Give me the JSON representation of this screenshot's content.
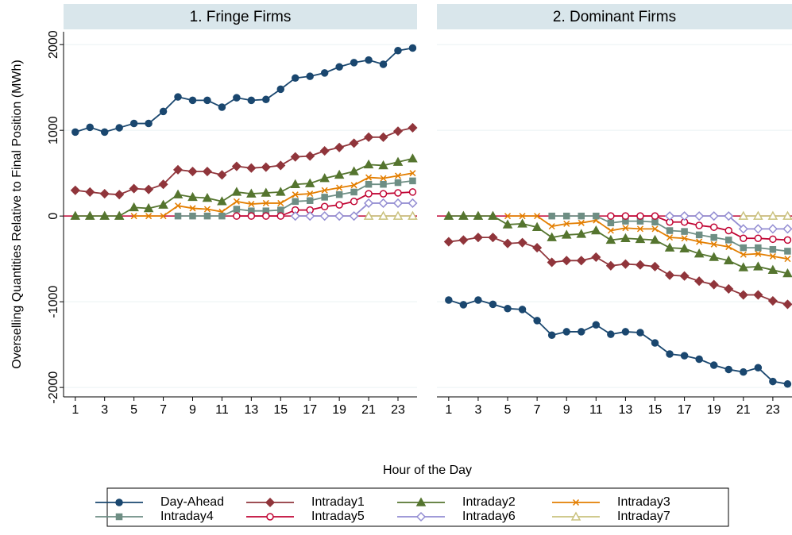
{
  "chart_data": [
    {
      "type": "line",
      "title": "1. Fringe Firms",
      "ylabel": "Overselling Quantities Relative to Final Position (MWh)",
      "xlabel": "Hour of the Day",
      "x": [
        1,
        2,
        3,
        4,
        5,
        6,
        7,
        8,
        9,
        10,
        11,
        12,
        13,
        14,
        15,
        16,
        17,
        18,
        19,
        20,
        21,
        22,
        23,
        24
      ],
      "xlim": [
        0.2,
        24.3
      ],
      "xticks": [
        1,
        3,
        5,
        7,
        9,
        11,
        13,
        15,
        17,
        19,
        21,
        23
      ],
      "ylim": [
        -2110,
        2150
      ],
      "yticks": [
        -2000,
        -1000,
        0,
        1000,
        2000
      ],
      "grid": true,
      "hline": 0,
      "hline_color": "#c10534",
      "series": [
        {
          "name": "Day-Ahead",
          "color": "#1a476f",
          "marker": "circle",
          "values": [
            980,
            1035,
            980,
            1030,
            1080,
            1080,
            1220,
            1390,
            1350,
            1350,
            1270,
            1380,
            1350,
            1360,
            1480,
            1610,
            1630,
            1670,
            1740,
            1790,
            1820,
            1770,
            1930,
            1960
          ]
        },
        {
          "name": "Intraday1",
          "color": "#90353b",
          "marker": "diamond",
          "values": [
            300,
            280,
            260,
            250,
            320,
            310,
            370,
            540,
            520,
            520,
            480,
            580,
            560,
            570,
            590,
            690,
            700,
            760,
            800,
            850,
            920,
            920,
            990,
            1030
          ]
        },
        {
          "name": "Intraday2",
          "color": "#55752f",
          "marker": "triangle",
          "values": [
            0,
            0,
            0,
            0,
            100,
            90,
            130,
            250,
            220,
            210,
            170,
            280,
            260,
            270,
            280,
            370,
            380,
            440,
            480,
            520,
            600,
            590,
            630,
            670
          ]
        },
        {
          "name": "Intraday3",
          "color": "#e37e00",
          "marker": "x",
          "values": [
            null,
            null,
            null,
            null,
            0,
            0,
            0,
            120,
            90,
            80,
            50,
            170,
            140,
            150,
            150,
            250,
            260,
            300,
            330,
            360,
            450,
            440,
            470,
            500
          ]
        },
        {
          "name": "Intraday4",
          "color": "#6e8e84",
          "marker": "square",
          "values": [
            null,
            null,
            null,
            null,
            null,
            null,
            null,
            0,
            0,
            0,
            0,
            80,
            60,
            60,
            70,
            170,
            180,
            220,
            250,
            280,
            370,
            370,
            390,
            410
          ]
        },
        {
          "name": "Intraday5",
          "color": "#c10534",
          "marker": "hollow-circle",
          "values": [
            null,
            null,
            null,
            null,
            null,
            null,
            null,
            null,
            null,
            null,
            null,
            0,
            0,
            0,
            0,
            70,
            70,
            110,
            130,
            170,
            260,
            260,
            270,
            280
          ]
        },
        {
          "name": "Intraday6",
          "color": "#938dd2",
          "marker": "hollow-diamond",
          "values": [
            null,
            null,
            null,
            null,
            null,
            null,
            null,
            null,
            null,
            null,
            null,
            null,
            null,
            null,
            null,
            0,
            0,
            0,
            0,
            0,
            150,
            150,
            150,
            150
          ]
        },
        {
          "name": "Intraday7",
          "color": "#cac27e",
          "marker": "hollow-triangle",
          "values": [
            null,
            null,
            null,
            null,
            null,
            null,
            null,
            null,
            null,
            null,
            null,
            null,
            null,
            null,
            null,
            null,
            null,
            null,
            null,
            null,
            0,
            0,
            0,
            0
          ]
        }
      ]
    },
    {
      "type": "line",
      "title": "2. Dominant Firms",
      "x": [
        1,
        2,
        3,
        4,
        5,
        6,
        7,
        8,
        9,
        10,
        11,
        12,
        13,
        14,
        15,
        16,
        17,
        18,
        19,
        20,
        21,
        22,
        23,
        24
      ],
      "xlim": [
        0.2,
        24.3
      ],
      "xticks": [
        1,
        3,
        5,
        7,
        9,
        11,
        13,
        15,
        17,
        19,
        21,
        23
      ],
      "ylim": [
        -2110,
        2150
      ],
      "grid": true,
      "hline": 0,
      "hline_color": "#c10534",
      "series": [
        {
          "color": "#1a476f",
          "marker": "circle",
          "values": [
            -980,
            -1035,
            -980,
            -1030,
            -1080,
            -1090,
            -1220,
            -1390,
            -1350,
            -1350,
            -1270,
            -1380,
            -1350,
            -1360,
            -1480,
            -1610,
            -1630,
            -1670,
            -1740,
            -1790,
            -1820,
            -1770,
            -1930,
            -1960
          ]
        },
        {
          "color": "#90353b",
          "marker": "diamond",
          "values": [
            -300,
            -280,
            -250,
            -250,
            -320,
            -310,
            -370,
            -540,
            -520,
            -520,
            -480,
            -580,
            -560,
            -570,
            -590,
            -690,
            -700,
            -760,
            -800,
            -850,
            -920,
            -920,
            -990,
            -1030
          ]
        },
        {
          "color": "#55752f",
          "marker": "triangle",
          "values": [
            0,
            0,
            0,
            0,
            -100,
            -90,
            -130,
            -250,
            -220,
            -210,
            -170,
            -280,
            -260,
            -270,
            -280,
            -370,
            -380,
            -440,
            -480,
            -520,
            -600,
            -590,
            -630,
            -670
          ]
        },
        {
          "color": "#e37e00",
          "marker": "x",
          "values": [
            null,
            null,
            null,
            null,
            0,
            0,
            0,
            -120,
            -90,
            -80,
            -50,
            -170,
            -140,
            -150,
            -150,
            -250,
            -260,
            -300,
            -330,
            -360,
            -450,
            -440,
            -470,
            -500
          ]
        },
        {
          "color": "#6e8e84",
          "marker": "square",
          "values": [
            null,
            null,
            null,
            null,
            null,
            null,
            null,
            0,
            0,
            0,
            0,
            -80,
            -60,
            -60,
            -70,
            -170,
            -180,
            -220,
            -250,
            -280,
            -370,
            -370,
            -390,
            -410
          ]
        },
        {
          "color": "#c10534",
          "marker": "hollow-circle",
          "values": [
            null,
            null,
            null,
            null,
            null,
            null,
            null,
            null,
            null,
            null,
            null,
            0,
            0,
            0,
            0,
            -70,
            -70,
            -110,
            -130,
            -170,
            -260,
            -260,
            -270,
            -280
          ]
        },
        {
          "color": "#938dd2",
          "marker": "hollow-diamond",
          "values": [
            null,
            null,
            null,
            null,
            null,
            null,
            null,
            null,
            null,
            null,
            null,
            null,
            null,
            null,
            null,
            0,
            0,
            0,
            0,
            0,
            -150,
            -150,
            -150,
            -150
          ]
        },
        {
          "color": "#cac27e",
          "marker": "hollow-triangle",
          "values": [
            null,
            null,
            null,
            null,
            null,
            null,
            null,
            null,
            null,
            null,
            null,
            null,
            null,
            null,
            null,
            null,
            null,
            null,
            null,
            null,
            0,
            0,
            0,
            0
          ]
        }
      ]
    }
  ]
}
